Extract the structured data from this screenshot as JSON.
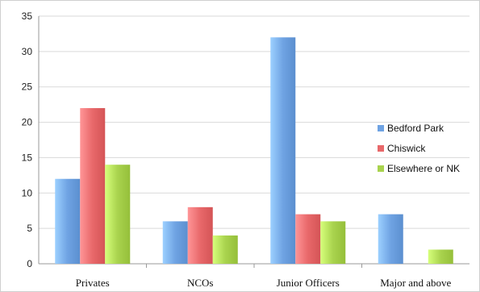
{
  "chart_data": {
    "type": "bar",
    "categories": [
      "Privates",
      "NCOs",
      "Junior Officers",
      "Major and above"
    ],
    "series": [
      {
        "name": "Bedford Park",
        "values": [
          12,
          6,
          32,
          7
        ],
        "color": "#6fa3e3"
      },
      {
        "name": "Chiswick",
        "values": [
          22,
          8,
          7,
          0
        ],
        "color": "#e8686a"
      },
      {
        "name": "Elsewhere or NK",
        "values": [
          14,
          4,
          6,
          2
        ],
        "color": "#a9d34e"
      }
    ],
    "y_ticks": [
      0,
      5,
      10,
      15,
      20,
      25,
      30,
      35
    ],
    "ylim": [
      0,
      35
    ],
    "grid": "horizontal",
    "legend_position": "right"
  }
}
